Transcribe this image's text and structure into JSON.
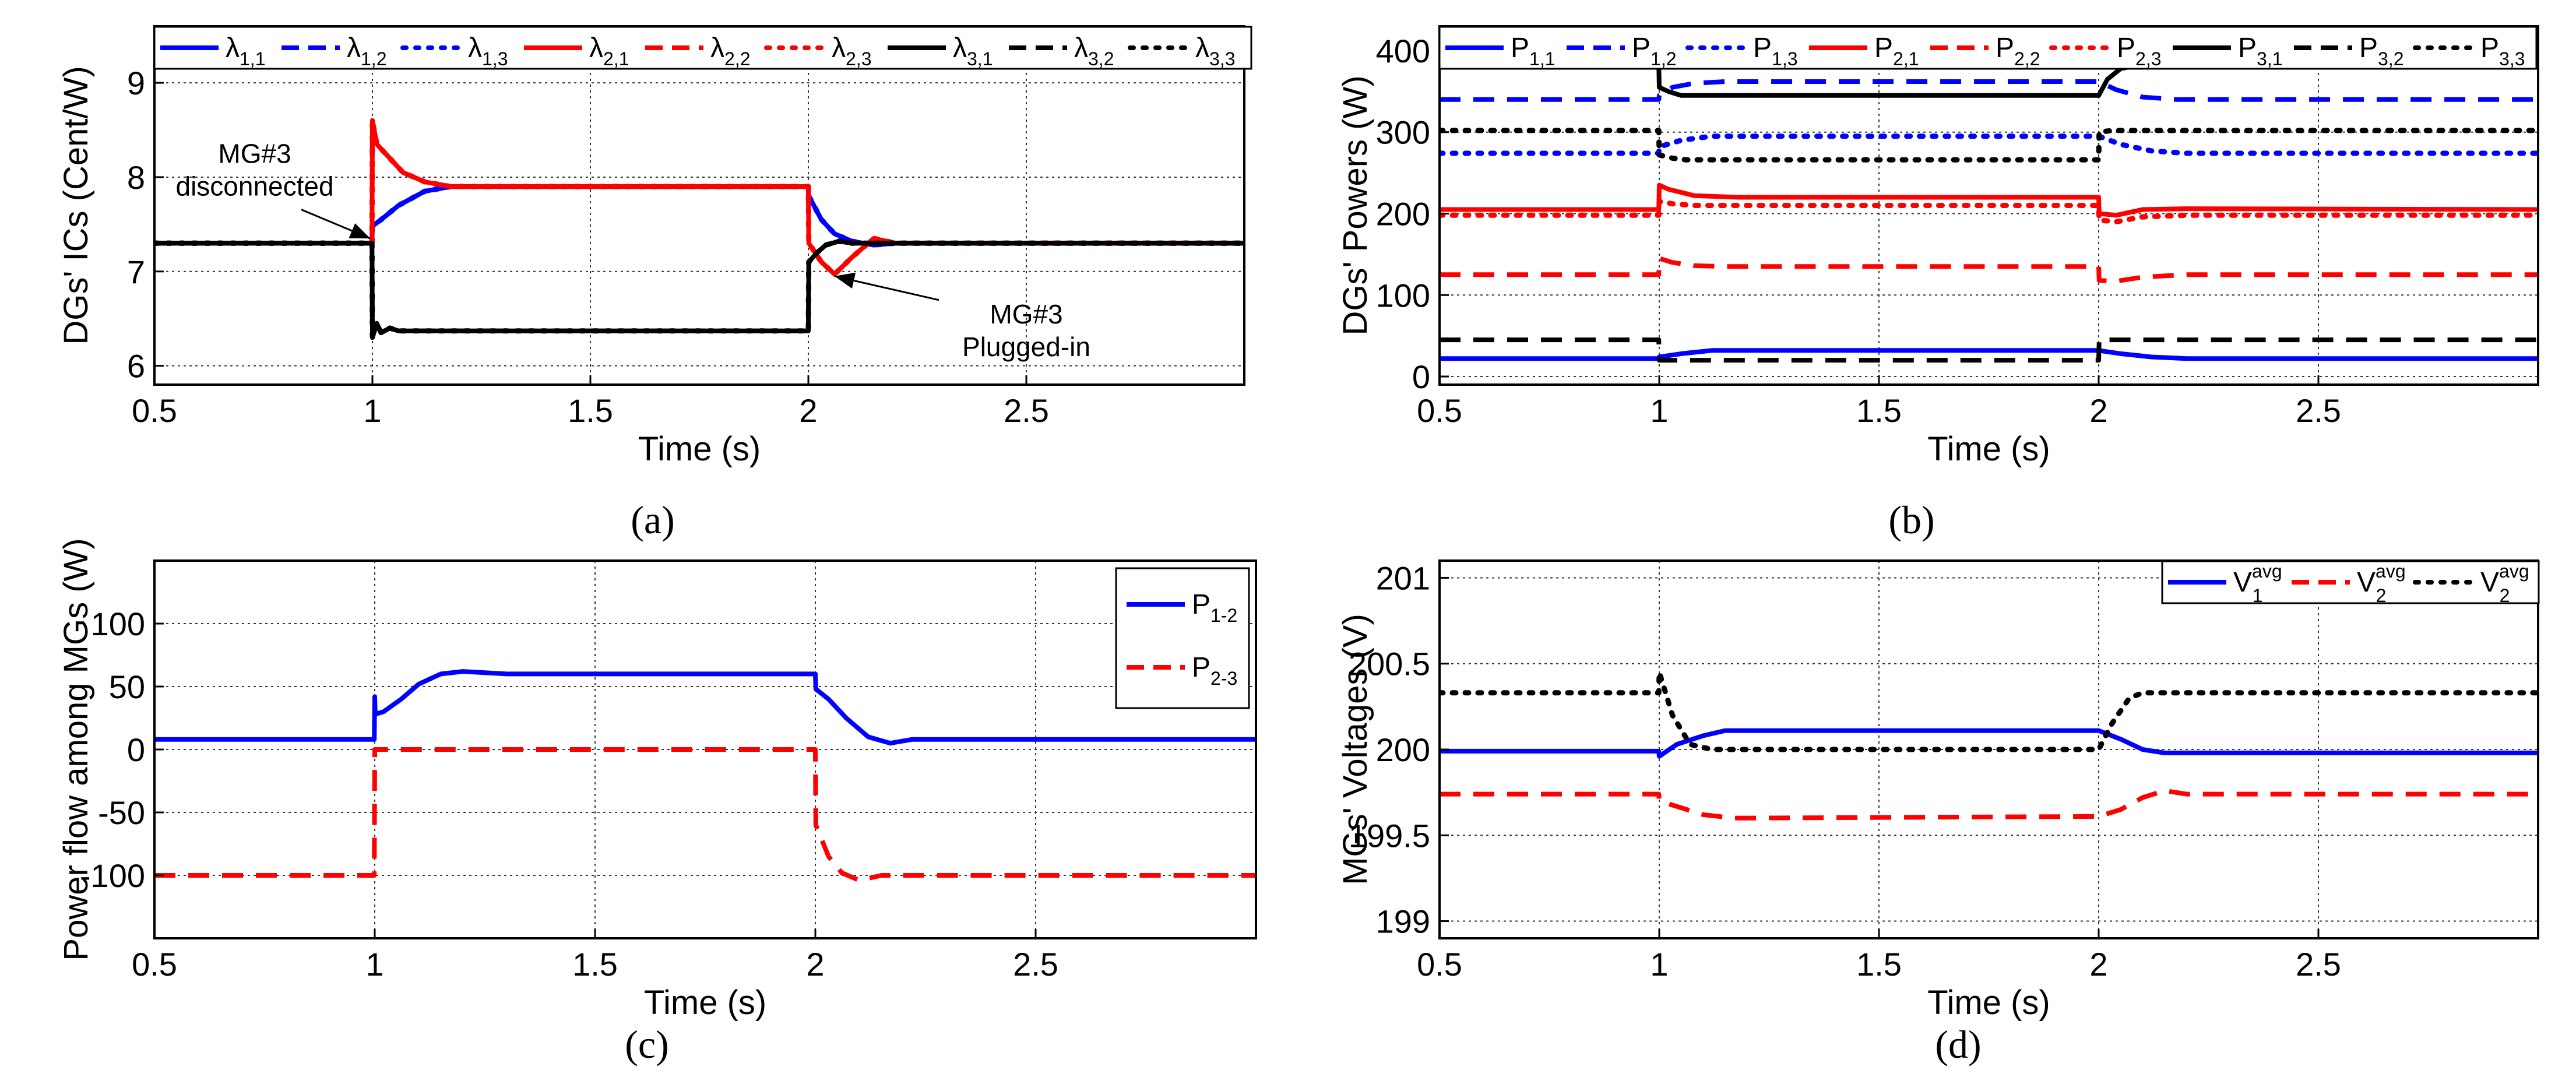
{
  "chart_data": [
    {
      "id": "a",
      "type": "line",
      "panel_label": "(a)",
      "xlabel": "Time (s)",
      "ylabel": "DGs' ICs (Cent/W)",
      "xlim": [
        0.5,
        3.0
      ],
      "ylim": [
        5.8,
        9.6
      ],
      "xticks": [
        0.5,
        1,
        1.5,
        2,
        2.5
      ],
      "xtick_labels": [
        "0.5",
        "1",
        "1.5",
        "2",
        "2.5"
      ],
      "yticks": [
        6,
        7,
        8,
        9
      ],
      "ytick_labels": [
        "6",
        "7",
        "8",
        "9"
      ],
      "grid": true,
      "legend_position": "top",
      "legend_columns": 9,
      "annotations": [
        {
          "lines": [
            "MG#3",
            "disconnected"
          ],
          "anchor": [
            0.73,
            8.15
          ],
          "arrow_to": [
            0.995,
            7.35
          ]
        },
        {
          "lines": [
            "MG#3",
            "Plugged-in"
          ],
          "anchor": [
            2.5,
            6.45
          ],
          "arrow_to": [
            2.06,
            6.95
          ]
        }
      ],
      "series": [
        {
          "name": "λ",
          "sub": "1,1",
          "color": "#0000ff",
          "dash": "solid",
          "x": [
            0.5,
            0.999,
            1.0,
            1.02,
            1.06,
            1.12,
            1.18,
            2.0,
            2.001,
            2.03,
            2.06,
            2.1,
            2.15,
            2.2,
            3.0
          ],
          "y": [
            7.3,
            7.3,
            7.48,
            7.55,
            7.7,
            7.85,
            7.9,
            7.9,
            7.8,
            7.55,
            7.4,
            7.32,
            7.28,
            7.3,
            7.3
          ]
        },
        {
          "name": "λ",
          "sub": "1,2",
          "color": "#0000ff",
          "dash": "dashed",
          "x": [
            0.5,
            0.999,
            1.0,
            1.02,
            1.06,
            1.12,
            1.18,
            2.0,
            2.001,
            2.03,
            2.06,
            2.1,
            2.15,
            2.2,
            3.0
          ],
          "y": [
            7.3,
            7.3,
            7.48,
            7.55,
            7.7,
            7.85,
            7.9,
            7.9,
            7.8,
            7.55,
            7.4,
            7.32,
            7.28,
            7.3,
            7.3
          ]
        },
        {
          "name": "λ",
          "sub": "1,3",
          "color": "#0000ff",
          "dash": "dotted",
          "x": [
            0.5,
            0.999,
            1.0,
            1.02,
            1.06,
            1.12,
            1.18,
            2.0,
            2.001,
            2.03,
            2.06,
            2.1,
            2.15,
            2.2,
            3.0
          ],
          "y": [
            7.3,
            7.3,
            7.48,
            7.55,
            7.7,
            7.85,
            7.9,
            7.9,
            7.8,
            7.55,
            7.4,
            7.32,
            7.28,
            7.3,
            7.3
          ]
        },
        {
          "name": "λ",
          "sub": "2,1",
          "color": "#ff0000",
          "dash": "solid",
          "x": [
            0.5,
            0.999,
            1.0,
            1.01,
            1.03,
            1.07,
            1.12,
            1.18,
            1.24,
            2.0,
            2.001,
            2.03,
            2.06,
            2.1,
            2.15,
            2.2,
            3.0
          ],
          "y": [
            7.3,
            7.3,
            8.6,
            8.35,
            8.25,
            8.05,
            7.95,
            7.9,
            7.9,
            7.9,
            7.3,
            7.1,
            6.97,
            7.15,
            7.35,
            7.3,
            7.3
          ]
        },
        {
          "name": "λ",
          "sub": "2,2",
          "color": "#ff0000",
          "dash": "dashed",
          "x": [
            0.5,
            0.999,
            1.0,
            1.01,
            1.03,
            1.07,
            1.12,
            1.18,
            1.24,
            2.0,
            2.001,
            2.03,
            2.06,
            2.1,
            2.15,
            2.2,
            3.0
          ],
          "y": [
            7.3,
            7.3,
            8.6,
            8.35,
            8.25,
            8.05,
            7.95,
            7.9,
            7.9,
            7.9,
            7.3,
            7.1,
            6.97,
            7.15,
            7.35,
            7.3,
            7.3
          ]
        },
        {
          "name": "λ",
          "sub": "2,3",
          "color": "#ff0000",
          "dash": "dotted",
          "x": [
            0.5,
            0.999,
            1.0,
            1.01,
            1.03,
            1.07,
            1.12,
            1.18,
            1.24,
            2.0,
            2.001,
            2.03,
            2.06,
            2.1,
            2.15,
            2.2,
            3.0
          ],
          "y": [
            7.3,
            7.3,
            8.6,
            8.35,
            8.25,
            8.05,
            7.95,
            7.9,
            7.9,
            7.9,
            7.3,
            7.1,
            6.97,
            7.15,
            7.35,
            7.3,
            7.3
          ]
        },
        {
          "name": "λ",
          "sub": "3,1",
          "color": "#000000",
          "dash": "solid",
          "x": [
            0.5,
            0.999,
            1.0,
            1.01,
            1.02,
            1.04,
            1.06,
            1.1,
            2.0,
            2.001,
            2.02,
            2.04,
            2.07,
            2.1,
            3.0
          ],
          "y": [
            7.3,
            7.3,
            6.3,
            6.45,
            6.35,
            6.4,
            6.37,
            6.37,
            6.37,
            7.1,
            7.2,
            7.28,
            7.32,
            7.3,
            7.3
          ]
        },
        {
          "name": "λ",
          "sub": "3,2",
          "color": "#000000",
          "dash": "dashed",
          "x": [
            0.5,
            0.999,
            1.0,
            1.01,
            1.02,
            1.04,
            1.06,
            1.1,
            2.0,
            2.001,
            2.02,
            2.04,
            2.07,
            2.1,
            3.0
          ],
          "y": [
            7.3,
            7.3,
            6.3,
            6.45,
            6.35,
            6.4,
            6.37,
            6.37,
            6.37,
            7.1,
            7.2,
            7.28,
            7.32,
            7.3,
            7.3
          ]
        },
        {
          "name": "λ",
          "sub": "3,3",
          "color": "#000000",
          "dash": "dotted",
          "x": [
            0.5,
            0.999,
            1.0,
            1.01,
            1.02,
            1.04,
            1.06,
            1.1,
            2.0,
            2.001,
            2.02,
            2.04,
            2.07,
            2.1,
            3.0
          ],
          "y": [
            7.3,
            7.3,
            6.3,
            6.45,
            6.35,
            6.4,
            6.37,
            6.37,
            6.37,
            7.1,
            7.2,
            7.28,
            7.32,
            7.3,
            7.3
          ]
        }
      ]
    },
    {
      "id": "b",
      "type": "line",
      "panel_label": "(b)",
      "xlabel": "Time (s)",
      "ylabel": "DGs' Powers (W)",
      "xlim": [
        0.5,
        3.0
      ],
      "ylim": [
        -10,
        430
      ],
      "xticks": [
        0.5,
        1,
        1.5,
        2,
        2.5
      ],
      "xtick_labels": [
        "0.5",
        "1",
        "1.5",
        "2",
        "2.5"
      ],
      "yticks": [
        0,
        100,
        200,
        300,
        400
      ],
      "ytick_labels": [
        "0",
        "100",
        "200",
        "300",
        "400"
      ],
      "grid": true,
      "legend_position": "top",
      "legend_columns": 9,
      "series": [
        {
          "name": "P",
          "sub": "1,1",
          "color": "#0000ff",
          "dash": "solid",
          "x": [
            0.5,
            0.999,
            1.0,
            1.05,
            1.12,
            2.0,
            2.05,
            2.12,
            2.2,
            3.0
          ],
          "y": [
            22,
            22,
            24,
            28,
            32,
            32,
            28,
            24,
            22,
            22
          ]
        },
        {
          "name": "P",
          "sub": "1,2",
          "color": "#0000ff",
          "dash": "dashed",
          "x": [
            0.5,
            0.999,
            1.0,
            1.03,
            1.08,
            1.15,
            2.0,
            2.04,
            2.1,
            2.18,
            3.0
          ],
          "y": [
            340,
            340,
            345,
            355,
            360,
            362,
            362,
            352,
            343,
            340,
            340
          ]
        },
        {
          "name": "P",
          "sub": "1,3",
          "color": "#0000ff",
          "dash": "dotted",
          "x": [
            0.5,
            0.999,
            1.0,
            1.05,
            1.12,
            2.0,
            2.05,
            2.12,
            2.2,
            3.0
          ],
          "y": [
            274,
            274,
            282,
            290,
            295,
            295,
            285,
            277,
            274,
            274
          ]
        },
        {
          "name": "P",
          "sub": "2,1",
          "color": "#ff0000",
          "dash": "solid",
          "x": [
            0.5,
            0.999,
            1.0,
            1.02,
            1.08,
            1.18,
            2.0,
            2.001,
            2.04,
            2.1,
            2.2,
            3.0
          ],
          "y": [
            205,
            205,
            235,
            230,
            222,
            220,
            220,
            200,
            198,
            205,
            206,
            205
          ]
        },
        {
          "name": "P",
          "sub": "2,2",
          "color": "#ff0000",
          "dash": "dashed",
          "x": [
            0.5,
            0.999,
            1.0,
            1.03,
            1.08,
            1.15,
            2.0,
            2.001,
            2.04,
            2.1,
            2.2,
            3.0
          ],
          "y": [
            125,
            125,
            145,
            140,
            136,
            135,
            135,
            118,
            117,
            122,
            125,
            125
          ]
        },
        {
          "name": "P",
          "sub": "2,3",
          "color": "#ff0000",
          "dash": "dotted",
          "x": [
            0.5,
            0.999,
            1.0,
            1.03,
            1.08,
            1.15,
            2.0,
            2.001,
            2.04,
            2.1,
            2.2,
            3.0
          ],
          "y": [
            198,
            198,
            215,
            212,
            210,
            210,
            210,
            192,
            190,
            196,
            198,
            198
          ]
        },
        {
          "name": "P",
          "sub": "3,1",
          "color": "#000000",
          "dash": "solid",
          "x": [
            0.5,
            0.999,
            1.0,
            1.02,
            1.05,
            2.0,
            2.02,
            2.05,
            2.1,
            3.0
          ],
          "y": [
            383,
            383,
            355,
            350,
            345,
            345,
            365,
            378,
            383,
            383
          ]
        },
        {
          "name": "P",
          "sub": "3,2",
          "color": "#000000",
          "dash": "dashed",
          "x": [
            0.5,
            0.999,
            1.0,
            2.0,
            2.001,
            3.0
          ],
          "y": [
            45,
            45,
            20,
            20,
            45,
            45
          ]
        },
        {
          "name": "P",
          "sub": "3,3",
          "color": "#000000",
          "dash": "dotted",
          "x": [
            0.5,
            0.999,
            1.0,
            1.03,
            1.06,
            2.0,
            2.001,
            2.03,
            3.0
          ],
          "y": [
            302,
            302,
            272,
            268,
            266,
            266,
            300,
            302,
            302
          ]
        }
      ]
    },
    {
      "id": "c",
      "type": "line",
      "panel_label": "(c)",
      "xlabel": "Time (s)",
      "ylabel": "Power flow among MGs (W)",
      "xlim": [
        0.5,
        3.0
      ],
      "ylim": [
        -150,
        150
      ],
      "xticks": [
        0.5,
        1,
        1.5,
        2,
        2.5
      ],
      "xtick_labels": [
        "0.5",
        "1",
        "1.5",
        "2",
        "2.5"
      ],
      "yticks": [
        -100,
        -50,
        0,
        50,
        100
      ],
      "ytick_labels": [
        "-100",
        "-50",
        "0",
        "50",
        "100"
      ],
      "grid": true,
      "legend_position": "top-right",
      "legend_columns": 1,
      "series": [
        {
          "name": "P",
          "sub": "1-2",
          "color": "#0000ff",
          "dash": "solid",
          "x": [
            0.5,
            0.999,
            1.0,
            1.001,
            1.02,
            1.06,
            1.1,
            1.15,
            1.2,
            1.3,
            2.0,
            2.001,
            2.03,
            2.07,
            2.12,
            2.17,
            2.22,
            3.0
          ],
          "y": [
            8,
            8,
            42,
            28,
            30,
            40,
            52,
            60,
            62,
            60,
            60,
            48,
            40,
            25,
            10,
            5,
            8,
            8
          ]
        },
        {
          "name": "P",
          "sub": "2-3",
          "color": "#ff0000",
          "dash": "dashed",
          "x": [
            0.5,
            0.999,
            1.0,
            2.0,
            2.001,
            2.03,
            2.06,
            2.1,
            2.15,
            2.2,
            3.0
          ],
          "y": [
            -100,
            -100,
            0,
            0,
            -60,
            -85,
            -98,
            -104,
            -100,
            -100,
            -100
          ]
        }
      ]
    },
    {
      "id": "d",
      "type": "line",
      "panel_label": "(d)",
      "xlabel": "Time (s)",
      "ylabel": "MGs' Voltages (V)",
      "xlim": [
        0.5,
        3.0
      ],
      "ylim": [
        198.9,
        201.1
      ],
      "xticks": [
        0.5,
        1,
        1.5,
        2,
        2.5
      ],
      "xtick_labels": [
        "0.5",
        "1",
        "1.5",
        "2",
        "2.5"
      ],
      "yticks": [
        199,
        199.5,
        200,
        200.5,
        201
      ],
      "ytick_labels": [
        "199",
        "199.5",
        "200",
        "200.5",
        "201"
      ],
      "grid": true,
      "legend_position": "top-right",
      "legend_columns": 3,
      "series": [
        {
          "name": "V",
          "sub": "1",
          "sup": "avg",
          "color": "#0000ff",
          "dash": "solid",
          "x": [
            0.5,
            0.999,
            1.0,
            1.04,
            1.1,
            1.15,
            1.2,
            2.0,
            2.05,
            2.1,
            2.15,
            3.0
          ],
          "y": [
            199.99,
            199.99,
            199.96,
            200.03,
            200.08,
            200.11,
            200.11,
            200.11,
            200.06,
            200.0,
            199.98,
            199.98
          ]
        },
        {
          "name": "V",
          "sub": "2",
          "sup": "avg",
          "color": "#ff0000",
          "dash": "dashed",
          "x": [
            0.5,
            0.999,
            1.0,
            1.05,
            1.1,
            1.17,
            2.0,
            2.05,
            2.1,
            2.15,
            2.2,
            3.0
          ],
          "y": [
            199.74,
            199.74,
            199.7,
            199.66,
            199.62,
            199.6,
            199.61,
            199.65,
            199.72,
            199.76,
            199.74,
            199.74
          ]
        },
        {
          "name": "V",
          "sub": "2",
          "sup": "avg",
          "color": "#000000",
          "dash": "dotted",
          "x": [
            0.5,
            0.999,
            1.0,
            1.03,
            1.07,
            1.12,
            2.0,
            2.03,
            2.07,
            2.1,
            3.0
          ],
          "y": [
            200.33,
            200.33,
            200.45,
            200.2,
            200.03,
            200.0,
            200.0,
            200.15,
            200.3,
            200.33,
            200.33
          ]
        }
      ]
    }
  ]
}
